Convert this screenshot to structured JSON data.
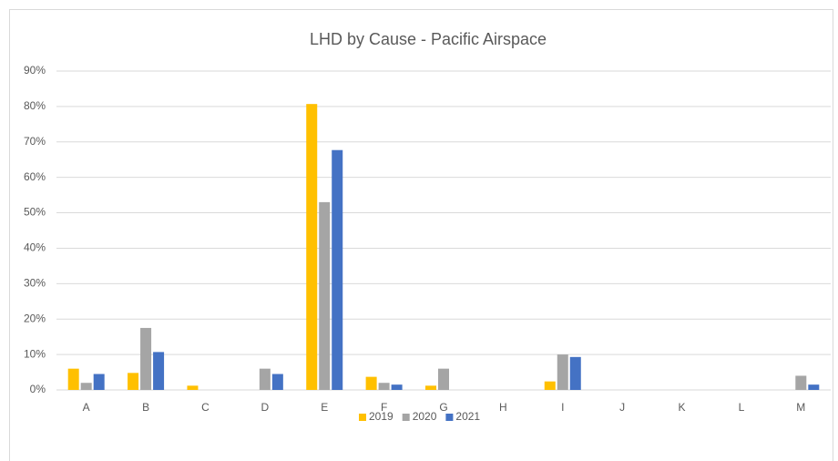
{
  "chart_data": {
    "type": "bar",
    "title": "LHD by Cause - Pacific Airspace",
    "categories": [
      "A",
      "B",
      "C",
      "D",
      "E",
      "F",
      "G",
      "H",
      "I",
      "J",
      "K",
      "L",
      "M"
    ],
    "series": [
      {
        "name": "2019",
        "color": "#FFC000",
        "values": [
          6,
          4.8,
          1.2,
          0,
          80.7,
          3.7,
          1.2,
          0,
          2.4,
          0,
          0,
          0,
          0
        ]
      },
      {
        "name": "2020",
        "color": "#A5A5A5",
        "values": [
          2,
          17.5,
          0,
          6,
          53,
          2,
          6,
          0,
          10,
          0,
          0,
          0,
          4
        ]
      },
      {
        "name": "2021",
        "color": "#4472C4",
        "values": [
          4.5,
          10.7,
          0,
          4.5,
          67.7,
          1.5,
          0,
          0,
          9.3,
          0,
          0,
          0,
          1.5
        ]
      }
    ],
    "ylim": [
      0,
      90
    ],
    "yticks": [
      {
        "value": 0,
        "label": "0%"
      },
      {
        "value": 10,
        "label": "10%"
      },
      {
        "value": 20,
        "label": "20%"
      },
      {
        "value": 30,
        "label": "30%"
      },
      {
        "value": 40,
        "label": "40%"
      },
      {
        "value": 50,
        "label": "50%"
      },
      {
        "value": 60,
        "label": "60%"
      },
      {
        "value": 70,
        "label": "70%"
      },
      {
        "value": 80,
        "label": "80%"
      },
      {
        "value": 90,
        "label": "90%"
      }
    ],
    "grid": true,
    "legend": "bottom"
  }
}
